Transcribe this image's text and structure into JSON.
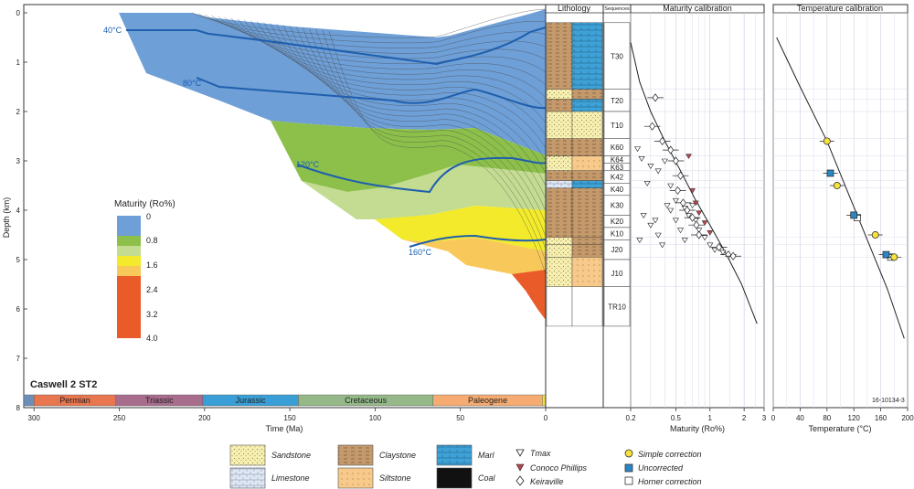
{
  "depth_axis": {
    "label": "Depth (km)",
    "ticks": [
      "0",
      "1",
      "2",
      "3",
      "4",
      "5",
      "6",
      "7",
      "8"
    ]
  },
  "time_axis": {
    "label": "Time (Ma)",
    "ticks": [
      "300",
      "250",
      "200",
      "150",
      "100",
      "50",
      "0"
    ]
  },
  "well_name": "Caswell 2 ST2",
  "isotherms": [
    {
      "label": "40°C",
      "color": "#1f5fae"
    },
    {
      "label": "80°C",
      "color": "#1f5fae"
    },
    {
      "label": "120°C",
      "color": "#1f5fae"
    },
    {
      "label": "160°C",
      "color": "#1f5fae"
    }
  ],
  "maturity_legend": {
    "title": "Maturity (Ro%)",
    "bands": [
      {
        "value": "0",
        "color": "#6e9fd7"
      },
      {
        "value": "0.8",
        "color": "#8cc04a"
      },
      {
        "value": "1.6",
        "color": "#f2ea2a"
      },
      {
        "value": "2.4",
        "color": "#f38a3a"
      },
      {
        "value": "3.2",
        "color": "#ea5b2a"
      },
      {
        "value": "4.0",
        "color": "#ea5b2a"
      }
    ],
    "extra_colors": [
      "#c3dc92",
      "#f8c95a"
    ]
  },
  "periods": [
    {
      "name": "",
      "color": "#6b8fb8"
    },
    {
      "name": "Permian",
      "color": "#e8764f"
    },
    {
      "name": "Triassic",
      "color": "#a86d8c"
    },
    {
      "name": "Jurassic",
      "color": "#3a9fd6"
    },
    {
      "name": "Cretaceous",
      "color": "#94b888"
    },
    {
      "name": "Paleogene",
      "color": "#f5ab72"
    },
    {
      "name": "",
      "color": "#f0e04a"
    }
  ],
  "lithology_panel": {
    "title": "Lithology",
    "sequences_title": "Sequences",
    "sequences": [
      "T30",
      "T20",
      "T10",
      "K60",
      "K64",
      "K63",
      "K42",
      "K40",
      "K30",
      "K20",
      "K10",
      "J20",
      "J10",
      "TR10"
    ]
  },
  "maturity_panel": {
    "title": "Maturity calibration",
    "xlabel": "Maturity (Ro%)",
    "ticks": [
      "0.2",
      "0.5",
      "1",
      "2",
      "3"
    ]
  },
  "temperature_panel": {
    "title": "Temperature calibration",
    "xlabel": "Temperature (°C)",
    "ticks": [
      "0",
      "40",
      "80",
      "120",
      "160",
      "200"
    ],
    "figure_id": "16-10134-3"
  },
  "legend": {
    "lithologies": [
      "Sandstone",
      "Claystone",
      "Marl",
      "Limestone",
      "Siltstone",
      "Coal"
    ],
    "maturity_symbols": [
      "Tmax",
      "Conoco Phillips",
      "Keiraville"
    ],
    "temperature_symbols": [
      "Simple correction",
      "Uncorrected",
      "Horner correction"
    ]
  },
  "colors": {
    "isotherm": "#1f5fae",
    "sandstone": "#f7efb0",
    "claystone": "#c49a6c",
    "marl": "#3fa2d6",
    "limestone": "#dfe8f4",
    "siltstone": "#f7c98a",
    "coal": "#111111",
    "simple": "#f5e23a",
    "uncorrected": "#2b86c5",
    "horner": "#ffffff"
  },
  "chart_data": {
    "type": "scatter",
    "maturity_calibration": {
      "xscale": "log",
      "xlim": [
        0.2,
        3
      ],
      "ylim": [
        0,
        8
      ],
      "trend": [
        [
          0.2,
          0.6
        ],
        [
          0.24,
          1.4
        ],
        [
          0.3,
          2.0
        ],
        [
          0.4,
          2.6
        ],
        [
          0.55,
          3.2
        ],
        [
          0.75,
          3.8
        ],
        [
          1.0,
          4.3
        ],
        [
          1.4,
          4.9
        ],
        [
          1.9,
          5.5
        ],
        [
          2.6,
          6.3
        ]
      ],
      "keiraville": [
        [
          0.33,
          1.72
        ],
        [
          0.31,
          2.3
        ],
        [
          0.38,
          2.6
        ],
        [
          0.45,
          2.78
        ],
        [
          0.5,
          3.0
        ],
        [
          0.55,
          3.3
        ],
        [
          0.52,
          3.6
        ],
        [
          0.58,
          3.85
        ],
        [
          0.63,
          4.0
        ],
        [
          0.7,
          4.15
        ],
        [
          0.76,
          4.3
        ],
        [
          0.8,
          4.5
        ],
        [
          1.2,
          4.75
        ],
        [
          1.45,
          4.9
        ],
        [
          1.6,
          4.93
        ]
      ],
      "tmax": [
        [
          0.23,
          2.75
        ],
        [
          0.25,
          2.95
        ],
        [
          0.3,
          3.1
        ],
        [
          0.35,
          3.2
        ],
        [
          0.28,
          3.45
        ],
        [
          0.4,
          3.0
        ],
        [
          0.45,
          3.5
        ],
        [
          0.42,
          3.9
        ],
        [
          0.26,
          4.1
        ],
        [
          0.3,
          4.3
        ],
        [
          0.35,
          4.5
        ],
        [
          0.38,
          4.7
        ],
        [
          0.5,
          4.2
        ],
        [
          0.55,
          4.4
        ],
        [
          0.6,
          4.6
        ],
        [
          0.65,
          4.1
        ],
        [
          0.5,
          3.8
        ],
        [
          0.6,
          3.95
        ],
        [
          0.7,
          3.9
        ],
        [
          0.75,
          4.2
        ],
        [
          0.8,
          4.4
        ],
        [
          1.0,
          4.7
        ],
        [
          1.1,
          4.8
        ],
        [
          1.3,
          4.85
        ],
        [
          0.9,
          4.55
        ],
        [
          0.45,
          4.0
        ],
        [
          0.33,
          4.2
        ],
        [
          0.24,
          4.6
        ]
      ],
      "conoco_phillips": [
        [
          0.65,
          2.9
        ],
        [
          0.7,
          3.6
        ],
        [
          0.75,
          3.85
        ],
        [
          0.8,
          4.05
        ],
        [
          0.9,
          4.25
        ],
        [
          1.0,
          4.45
        ]
      ]
    },
    "temperature_calibration": {
      "xlim": [
        0,
        200
      ],
      "ylim": [
        0,
        8
      ],
      "trend": [
        [
          5,
          0.5
        ],
        [
          40,
          1.5
        ],
        [
          80,
          2.6
        ],
        [
          110,
          3.6
        ],
        [
          140,
          4.6
        ],
        [
          170,
          5.6
        ],
        [
          195,
          6.6
        ]
      ],
      "simple_correction": [
        [
          80,
          2.6
        ],
        [
          95,
          3.5
        ],
        [
          152,
          4.5
        ],
        [
          180,
          4.95
        ]
      ],
      "uncorrected": [
        [
          85,
          3.25
        ],
        [
          120,
          4.1
        ],
        [
          168,
          4.9
        ]
      ],
      "horner_correction": [
        [
          125,
          4.15
        ],
        [
          175,
          4.95
        ]
      ]
    }
  }
}
